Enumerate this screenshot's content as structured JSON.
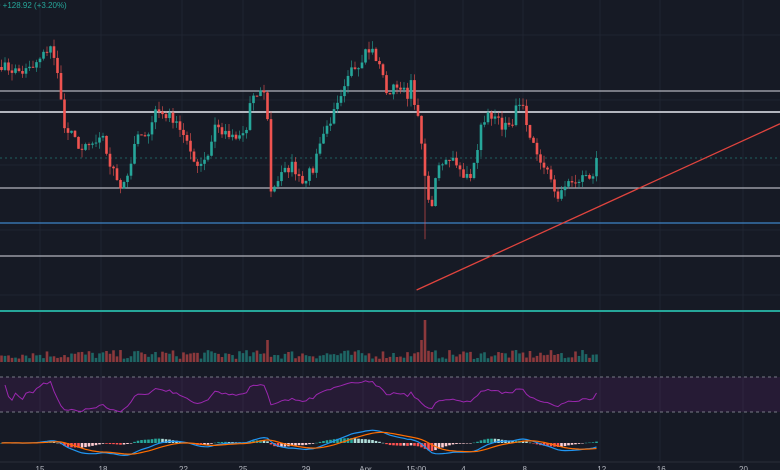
{
  "header": {
    "change_text": "0  +128.92 (+3.20%)"
  },
  "colors": {
    "up": "#26a69a",
    "down": "#ef5350",
    "bg": "#161a25",
    "grid": "#1f2431",
    "level": "#b2b5be",
    "support": "#3d85c6",
    "trend": "#e0443e",
    "rsi": "#9c27b0",
    "macd": "#2196f3",
    "signal": "#ff6d00"
  },
  "chart_data": {
    "type": "candlestick",
    "title": "",
    "price_waypoints": [
      [
        0,
        4235
      ],
      [
        3,
        4230
      ],
      [
        6,
        4228
      ],
      [
        9,
        4232
      ],
      [
        11,
        4240
      ],
      [
        14,
        4255
      ],
      [
        16,
        4225
      ],
      [
        17,
        4205
      ],
      [
        18,
        4170
      ],
      [
        20,
        4165
      ],
      [
        23,
        4150
      ],
      [
        26,
        4155
      ],
      [
        29,
        4160
      ],
      [
        31,
        4135
      ],
      [
        34,
        4115
      ],
      [
        36,
        4125
      ],
      [
        39,
        4165
      ],
      [
        41,
        4160
      ],
      [
        44,
        4190
      ],
      [
        47,
        4185
      ],
      [
        50,
        4180
      ],
      [
        53,
        4155
      ],
      [
        56,
        4135
      ],
      [
        59,
        4145
      ],
      [
        61,
        4175
      ],
      [
        64,
        4165
      ],
      [
        67,
        4160
      ],
      [
        70,
        4170
      ],
      [
        71,
        4195
      ],
      [
        73,
        4205
      ],
      [
        75,
        4210
      ],
      [
        76,
        4180
      ],
      [
        77,
        4110
      ],
      [
        80,
        4125
      ],
      [
        83,
        4135
      ],
      [
        86,
        4120
      ],
      [
        89,
        4130
      ],
      [
        91,
        4160
      ],
      [
        94,
        4180
      ],
      [
        97,
        4200
      ],
      [
        100,
        4230
      ],
      [
        103,
        4240
      ],
      [
        104,
        4255
      ],
      [
        106,
        4250
      ],
      [
        109,
        4225
      ],
      [
        110,
        4205
      ],
      [
        113,
        4215
      ],
      [
        116,
        4205
      ],
      [
        117,
        4220
      ],
      [
        119,
        4180
      ],
      [
        120,
        4155
      ],
      [
        121,
        4120
      ],
      [
        123,
        4090
      ],
      [
        124,
        4125
      ],
      [
        126,
        4135
      ],
      [
        129,
        4145
      ],
      [
        131,
        4130
      ],
      [
        134,
        4120
      ],
      [
        136,
        4150
      ],
      [
        137,
        4180
      ],
      [
        140,
        4185
      ],
      [
        143,
        4175
      ],
      [
        146,
        4170
      ],
      [
        147,
        4190
      ],
      [
        149,
        4195
      ],
      [
        151,
        4160
      ],
      [
        154,
        4140
      ],
      [
        157,
        4120
      ],
      [
        159,
        4100
      ],
      [
        161,
        4115
      ],
      [
        164,
        4120
      ],
      [
        167,
        4120
      ],
      [
        169,
        4120
      ],
      [
        170,
        4142
      ]
    ],
    "support_resistance_levels": [
      4209,
      4188,
      4112,
      4077,
      4044
    ],
    "current_price_line": 4142,
    "trendline": {
      "from": [
        118.6,
        4010
      ],
      "to": [
        222.9,
        4177
      ]
    },
    "volume_spike_index": 121,
    "rsi_band": [
      30,
      70
    ],
    "x_ticks": [
      {
        "i": 11,
        "label": "15"
      },
      {
        "i": 29,
        "label": "18"
      },
      {
        "i": 52,
        "label": "22"
      },
      {
        "i": 69,
        "label": "25"
      },
      {
        "i": 87,
        "label": "29"
      },
      {
        "i": 104,
        "label": "Apr"
      },
      {
        "i": 118.5,
        "label": "15:00"
      },
      {
        "i": 132,
        "label": "4"
      },
      {
        "i": 149.5,
        "label": "8"
      },
      {
        "i": 171.5,
        "label": "12"
      },
      {
        "i": 188.5,
        "label": "16"
      },
      {
        "i": 212,
        "label": "20"
      }
    ]
  }
}
